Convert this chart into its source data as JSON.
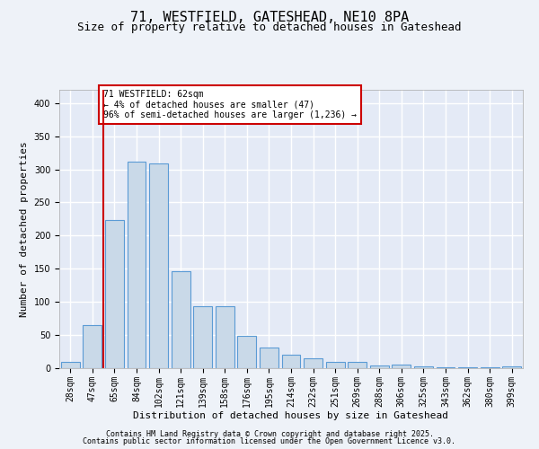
{
  "title": "71, WESTFIELD, GATESHEAD, NE10 8PA",
  "subtitle": "Size of property relative to detached houses in Gateshead",
  "xlabel": "Distribution of detached houses by size in Gateshead",
  "ylabel": "Number of detached properties",
  "categories": [
    "28sqm",
    "47sqm",
    "65sqm",
    "84sqm",
    "102sqm",
    "121sqm",
    "139sqm",
    "158sqm",
    "176sqm",
    "195sqm",
    "214sqm",
    "232sqm",
    "251sqm",
    "269sqm",
    "288sqm",
    "306sqm",
    "325sqm",
    "343sqm",
    "362sqm",
    "380sqm",
    "399sqm"
  ],
  "values": [
    9,
    65,
    224,
    311,
    309,
    146,
    93,
    93,
    49,
    31,
    20,
    15,
    10,
    10,
    4,
    5,
    3,
    2,
    1,
    2,
    3
  ],
  "bar_color": "#c9d9e8",
  "bar_edge_color": "#5b9bd5",
  "redline_x": 1.5,
  "annotation_text": "71 WESTFIELD: 62sqm\n← 4% of detached houses are smaller (47)\n96% of semi-detached houses are larger (1,236) →",
  "annotation_box_color": "#ffffff",
  "annotation_box_edge": "#cc0000",
  "redline_color": "#cc0000",
  "ylim": [
    0,
    420
  ],
  "yticks": [
    0,
    50,
    100,
    150,
    200,
    250,
    300,
    350,
    400
  ],
  "footer1": "Contains HM Land Registry data © Crown copyright and database right 2025.",
  "footer2": "Contains public sector information licensed under the Open Government Licence v3.0.",
  "bg_color": "#eef2f8",
  "axes_bg_color": "#e4eaf6",
  "grid_color": "#ffffff",
  "title_fontsize": 11,
  "subtitle_fontsize": 9,
  "xlabel_fontsize": 8,
  "ylabel_fontsize": 8,
  "tick_fontsize": 7,
  "annotation_fontsize": 7,
  "footer_fontsize": 6
}
